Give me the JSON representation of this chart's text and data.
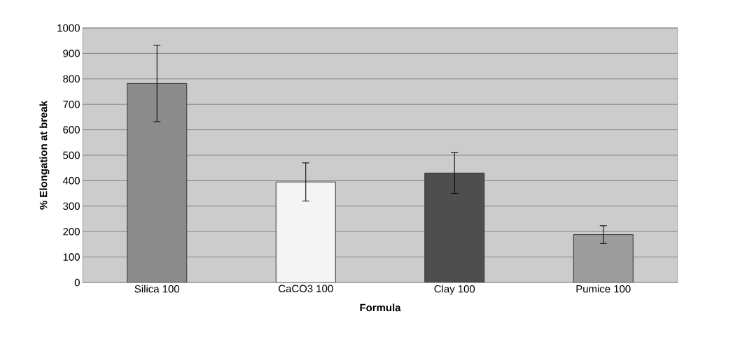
{
  "chart_data": {
    "type": "bar",
    "xlabel": "Formula",
    "ylabel": "% Elongation at break",
    "categories": [
      "Silica 100",
      "CaCO3 100",
      "Clay 100",
      "Pumice 100"
    ],
    "values": [
      782,
      395,
      430,
      188
    ],
    "errors": [
      150,
      75,
      80,
      35
    ],
    "colors": [
      "#8c8c8c",
      "#f4f4f4",
      "#4e4e4e",
      "#9c9c9c"
    ],
    "ylim": [
      0,
      1000
    ],
    "yticks": [
      0,
      100,
      200,
      300,
      400,
      500,
      600,
      700,
      800,
      900,
      1000
    ],
    "grid": "y"
  }
}
